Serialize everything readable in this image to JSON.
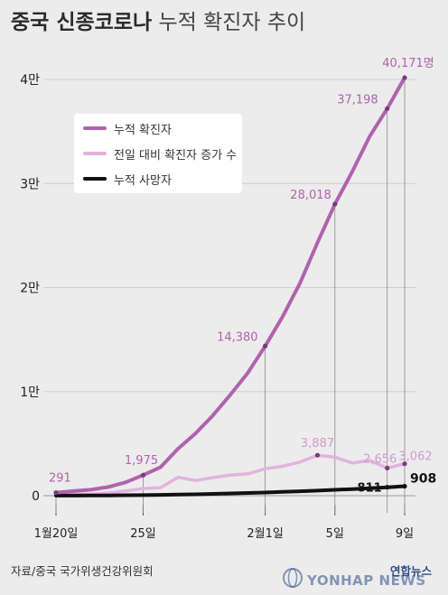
{
  "title": {
    "bold": "중국 신종코로나",
    "light": "누적 확진자 추이"
  },
  "legend": [
    {
      "label": "누적 확진자",
      "color": "#b063ad"
    },
    {
      "label": "전일 대비 확진자 증가 수",
      "color": "#e3b3de"
    },
    {
      "label": "누적 사망자",
      "color": "#111111"
    }
  ],
  "chart_data": {
    "type": "line",
    "title": "중국 신종코로나 누적 확진자 추이",
    "ylim": [
      0,
      40171
    ],
    "y_ticks": [
      {
        "value": 0,
        "label": "0"
      },
      {
        "value": 10000,
        "label": "1만"
      },
      {
        "value": 20000,
        "label": "2만"
      },
      {
        "value": 30000,
        "label": "3만"
      },
      {
        "value": 40000,
        "label": "4만"
      }
    ],
    "x_ticks": [
      {
        "day": 0,
        "label": "1월20일"
      },
      {
        "day": 5,
        "label": "25일"
      },
      {
        "day": 12,
        "label": "2월1일"
      },
      {
        "day": 16,
        "label": "5일"
      },
      {
        "day": 20,
        "label": "9일"
      }
    ],
    "x": [
      0,
      1,
      2,
      3,
      4,
      5,
      6,
      7,
      8,
      9,
      10,
      11,
      12,
      13,
      14,
      15,
      16,
      17,
      18,
      19,
      20
    ],
    "series": [
      {
        "name": "누적 확진자",
        "color": "#b063ad",
        "values": [
          291,
          440,
          571,
          830,
          1287,
          1975,
          2744,
          4515,
          5974,
          7711,
          9692,
          11791,
          14380,
          17205,
          20438,
          24324,
          28018,
          31161,
          34546,
          37198,
          40171
        ]
      },
      {
        "name": "전일 대비 확진자 증가 수",
        "color": "#e3b3de",
        "values": [
          77,
          149,
          131,
          259,
          457,
          688,
          769,
          1771,
          1459,
          1737,
          1981,
          2099,
          2589,
          2825,
          3233,
          3887,
          3694,
          3143,
          3385,
          2656,
          3062
        ]
      },
      {
        "name": "누적 사망자",
        "color": "#111111",
        "values": [
          6,
          9,
          17,
          25,
          41,
          56,
          80,
          106,
          132,
          170,
          213,
          259,
          304,
          361,
          425,
          490,
          563,
          636,
          722,
          811,
          908
        ]
      }
    ],
    "annotations": [
      {
        "series": 0,
        "day": 0,
        "label": "291"
      },
      {
        "series": 0,
        "day": 5,
        "label": "1,975"
      },
      {
        "series": 0,
        "day": 12,
        "label": "14,380"
      },
      {
        "series": 0,
        "day": 16,
        "label": "28,018"
      },
      {
        "series": 0,
        "day": 19,
        "label": "37,198"
      },
      {
        "series": 0,
        "day": 20,
        "label": "40,171명"
      },
      {
        "series": 1,
        "day": 15,
        "label": "3,887"
      },
      {
        "series": 1,
        "day": 19,
        "label": "2,656"
      },
      {
        "series": 1,
        "day": 20,
        "label": "3,062"
      },
      {
        "series": 2,
        "day": 19,
        "label": "811"
      },
      {
        "series": 2,
        "day": 20,
        "label": "908"
      }
    ],
    "grid": true
  },
  "source": "자료/중국 국가위생건강위원회",
  "logo": {
    "ko": "연합뉴스",
    "en": "YONHAP NEWS"
  }
}
